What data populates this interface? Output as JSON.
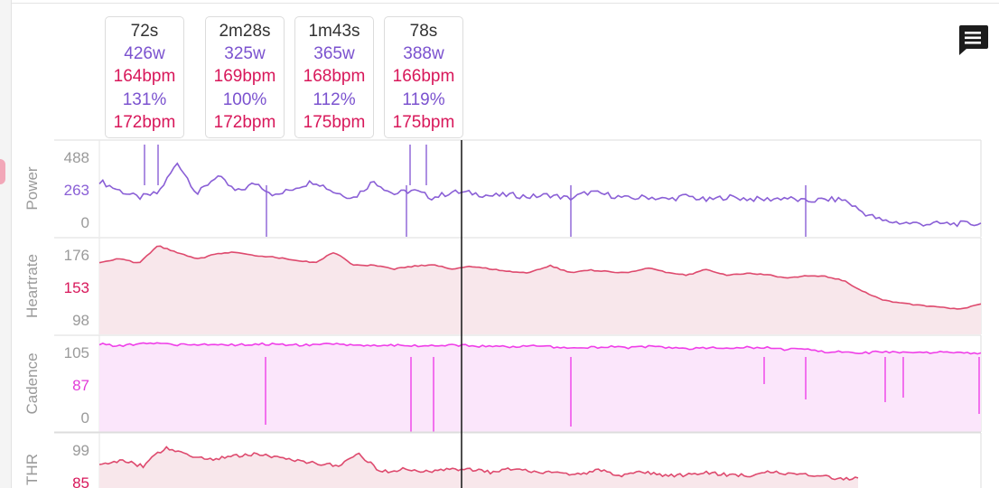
{
  "laps": [
    {
      "duration": "72s",
      "power": "426w",
      "hr": "164bpm",
      "pct": "131%",
      "thr": "172bpm"
    },
    {
      "duration": "2m28s",
      "power": "325w",
      "hr": "169bpm",
      "pct": "100%",
      "thr": "172bpm"
    },
    {
      "duration": "1m43s",
      "power": "365w",
      "hr": "168bpm",
      "pct": "112%",
      "thr": "175bpm"
    },
    {
      "duration": "78s",
      "power": "388w",
      "hr": "166bpm",
      "pct": "119%",
      "thr": "175bpm"
    }
  ],
  "icons": {
    "comment": "comment-icon"
  },
  "colors": {
    "power": "#8a5fd6",
    "heartrate": "#de4a6e",
    "cadence": "#ef3fe8",
    "thr": "#de4a6e",
    "cursor": "#222222"
  },
  "chart_data": [
    {
      "type": "line",
      "ylabel": "Power",
      "ticks": [
        "488",
        "263",
        "0"
      ],
      "ylim": [
        0,
        520
      ],
      "series": [
        {
          "values": [
            300,
            250,
            210,
            235,
            400,
            230,
            330,
            240,
            290,
            220,
            265,
            300,
            240,
            210,
            300,
            230,
            250,
            210,
            240,
            235,
            220,
            225,
            215,
            225,
            205,
            240,
            225,
            205,
            215,
            200,
            220,
            195,
            215,
            205,
            200,
            210,
            190,
            200,
            200,
            130,
            85,
            75,
            70,
            70,
            70,
            70
          ]
        }
      ]
    },
    {
      "type": "area",
      "ylabel": "Heartrate",
      "ticks": [
        "176",
        "153",
        "98"
      ],
      "ylim": [
        80,
        188
      ],
      "series": [
        {
          "values": [
            160,
            165,
            159,
            179,
            171,
            164,
            170,
            172,
            168,
            166,
            163,
            160,
            172,
            157,
            157,
            153,
            156,
            158,
            153,
            156,
            153,
            150,
            149,
            157,
            149,
            152,
            150,
            149,
            154,
            149,
            146,
            153,
            146,
            148,
            147,
            143,
            145,
            145,
            140,
            128,
            118,
            115,
            112,
            110,
            108,
            114
          ]
        }
      ]
    },
    {
      "type": "line",
      "ylabel": "Cadence",
      "ticks": [
        "105",
        "87",
        "0"
      ],
      "ylim": [
        0,
        110
      ],
      "series": [
        {
          "values": [
            100,
            98,
            100,
            101,
            99,
            100,
            99,
            99,
            100,
            100,
            99,
            99,
            100,
            98,
            99,
            99,
            98,
            98,
            99,
            98,
            97,
            97,
            98,
            97,
            96,
            96,
            97,
            96,
            97,
            96,
            95,
            96,
            95,
            96,
            96,
            94,
            95,
            91,
            92,
            90,
            91,
            90,
            90,
            91,
            90,
            90
          ]
        }
      ]
    },
    {
      "type": "area",
      "ylabel": "THR",
      "ticks": [
        "99",
        "85"
      ],
      "ylim": [
        72,
        104
      ],
      "series": [
        {
          "values": [
            93,
            95,
            93,
            99,
            97,
            95,
            96,
            97,
            96,
            95,
            94,
            93,
            97,
            91,
            92,
            91,
            92,
            92,
            91,
            92,
            91,
            91,
            90,
            92,
            90,
            91,
            90,
            90,
            91,
            90,
            90,
            91,
            90,
            90,
            89,
            89
          ]
        }
      ]
    }
  ]
}
